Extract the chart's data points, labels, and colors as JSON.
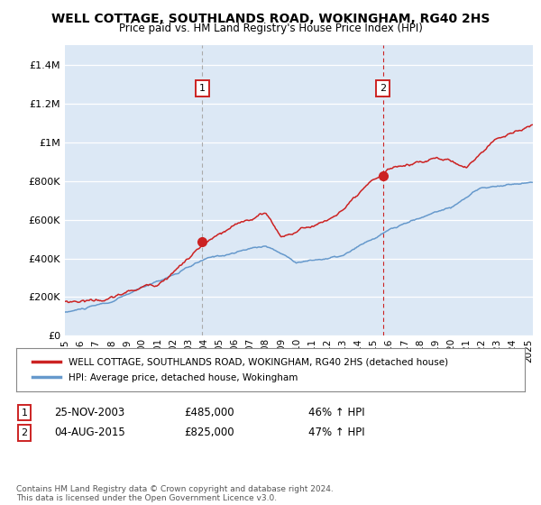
{
  "title": "WELL COTTAGE, SOUTHLANDS ROAD, WOKINGHAM, RG40 2HS",
  "subtitle": "Price paid vs. HM Land Registry's House Price Index (HPI)",
  "ylabel_ticks": [
    "£0",
    "£200K",
    "£400K",
    "£600K",
    "£800K",
    "£1M",
    "£1.2M",
    "£1.4M"
  ],
  "ylim": [
    0,
    1500000
  ],
  "xlim_start": 1995.0,
  "xlim_end": 2025.3,
  "hpi_color": "#6699cc",
  "price_color": "#cc2222",
  "marker1_x": 2003.9,
  "marker1_y": 485000,
  "marker2_x": 2015.58,
  "marker2_y": 825000,
  "vline1_x": 2003.9,
  "vline2_x": 2015.58,
  "legend_label_price": "WELL COTTAGE, SOUTHLANDS ROAD, WOKINGHAM, RG40 2HS (detached house)",
  "legend_label_hpi": "HPI: Average price, detached house, Wokingham",
  "footnote": "Contains HM Land Registry data © Crown copyright and database right 2024.\nThis data is licensed under the Open Government Licence v3.0.",
  "table_rows": [
    {
      "num": "1",
      "date": "25-NOV-2003",
      "price": "£485,000",
      "hpi": "46% ↑ HPI"
    },
    {
      "num": "2",
      "date": "04-AUG-2015",
      "price": "£825,000",
      "hpi": "47% ↑ HPI"
    }
  ],
  "background_color": "#ffffff",
  "plot_bg_color": "#dce8f5"
}
